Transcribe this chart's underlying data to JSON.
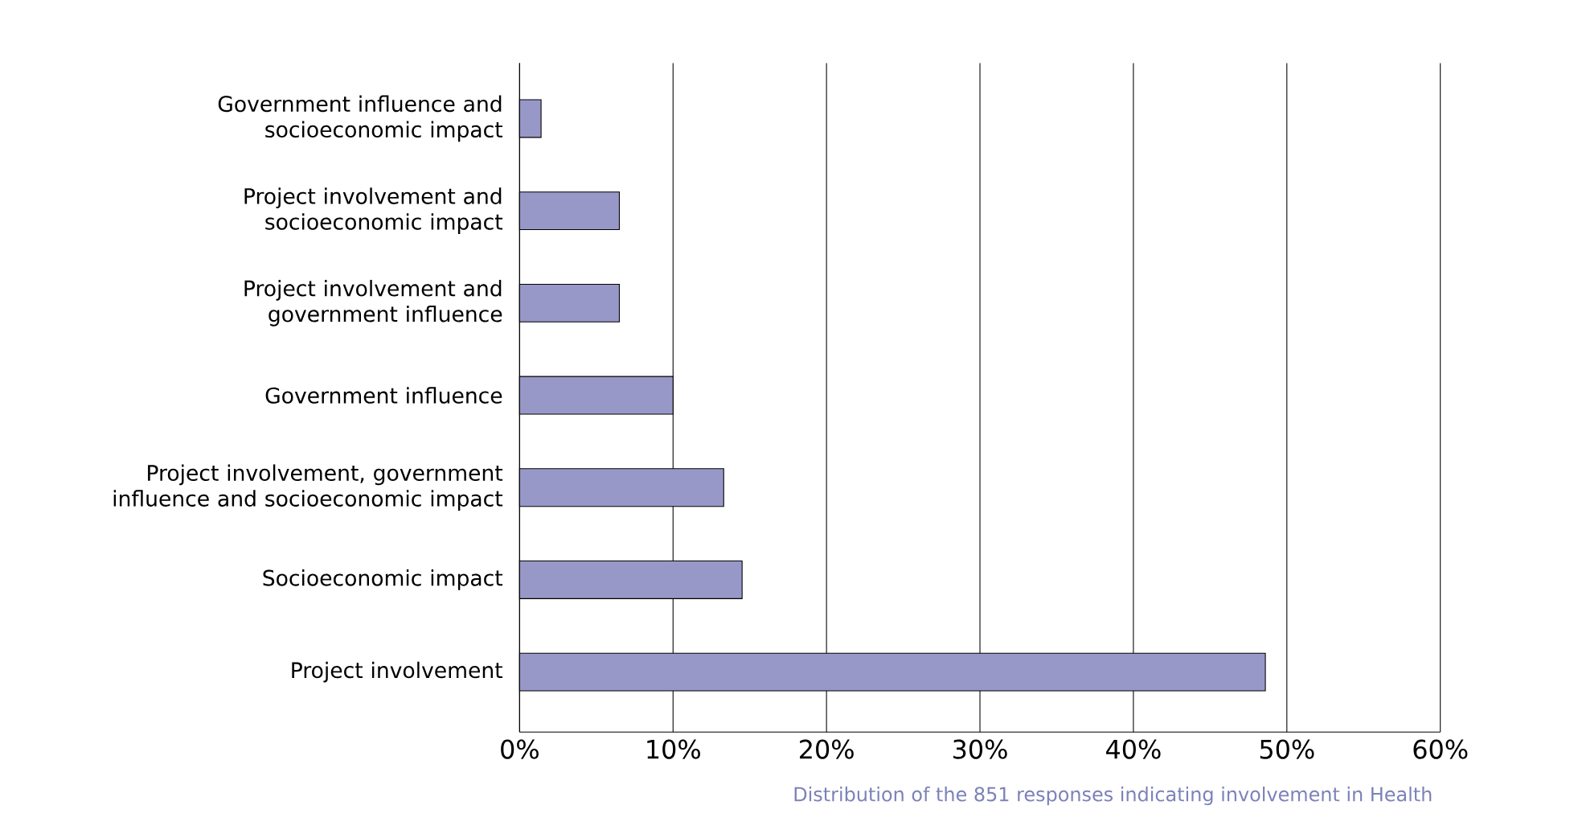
{
  "chart_data": {
    "type": "bar",
    "orientation": "horizontal",
    "categories": [
      "Government influence and socioeconomic impact",
      "Project involvement and socioeconomic impact",
      "Project involvement and government influence",
      "Government influence",
      "Project involvement, government influence and socioeconomic impact",
      "Socioeconomic impact",
      "Project involvement"
    ],
    "values": [
      1.4,
      6.5,
      6.5,
      10,
      13.3,
      14.5,
      48.6
    ],
    "color": "#9898c8",
    "xlim": [
      0,
      60
    ],
    "xticks": [
      {
        "value": 0,
        "label": "0%"
      },
      {
        "value": 10,
        "label": "10%"
      },
      {
        "value": 20,
        "label": "20%"
      },
      {
        "value": 30,
        "label": "30%"
      },
      {
        "value": 40,
        "label": "40%"
      },
      {
        "value": 50,
        "label": "50%"
      },
      {
        "value": 60,
        "label": "60%"
      }
    ],
    "grid": "x",
    "annotations": [
      "Distribution of the 851 responses indicating involvement in Health"
    ]
  }
}
